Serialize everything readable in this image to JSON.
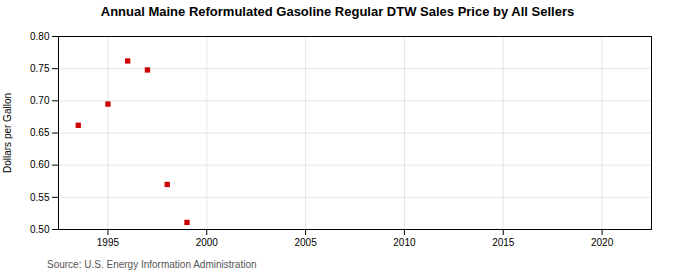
{
  "chart_data": {
    "type": "scatter",
    "title": "Annual Maine Reformulated Gasoline Regular DTW Sales Price by All Sellers",
    "ylabel": "Dollars per Gallon",
    "source": "Source: U.S. Energy Information Administration",
    "x": [
      1993.5,
      1995,
      1996,
      1997,
      1998,
      1999
    ],
    "values": [
      0.662,
      0.695,
      0.762,
      0.748,
      0.57,
      0.511
    ],
    "color": "#cc0000",
    "marker": "square",
    "xlim": [
      1992.5,
      2022.5
    ],
    "ylim": [
      0.5,
      0.8
    ],
    "xticks": [
      1995,
      2000,
      2005,
      2010,
      2015,
      2020
    ],
    "yticks": [
      {
        "value": 0.5,
        "label": "0.50"
      },
      {
        "value": 0.55,
        "label": "0.55"
      },
      {
        "value": 0.6,
        "label": "0.60"
      },
      {
        "value": 0.65,
        "label": "0.65"
      },
      {
        "value": 0.7,
        "label": "0.70"
      },
      {
        "value": 0.75,
        "label": "0.75"
      },
      {
        "value": 0.8,
        "label": "0.80"
      }
    ],
    "grid": true
  }
}
